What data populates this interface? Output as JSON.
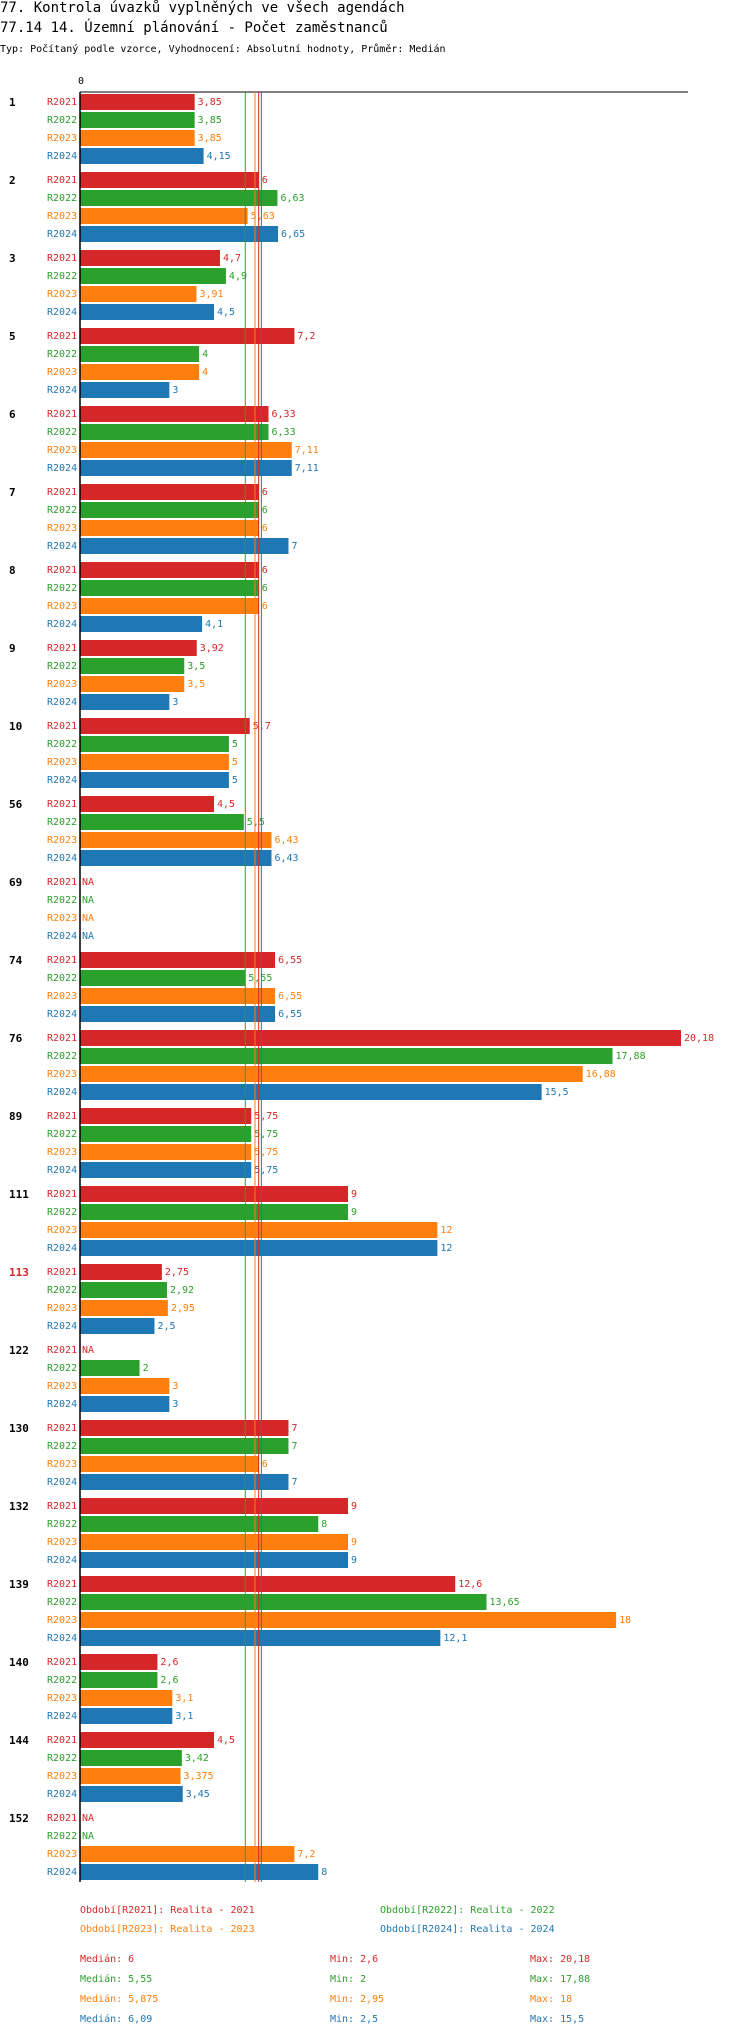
{
  "header": {
    "line1": "77. Kontrola úvazků vyplněných ve všech agendách",
    "line2": "77.14 14. Územní plánování - Počet zaměstnanců",
    "line3": "Typ: Počítaný podle vzorce, Vyhodnocení: Absolutní hodnoty, Průměr: Medián"
  },
  "colors": {
    "R2021": "#d62728",
    "R2022": "#2ca02c",
    "R2023": "#ff7f0e",
    "R2024": "#1f77b4",
    "highlight": "#d62728"
  },
  "chart_data": {
    "type": "bar",
    "orientation": "horizontal",
    "title": "77.14 14. Územní plánování - Počet zaměstnanců",
    "axis_zero_label": "0",
    "xlim": [
      0,
      20.18
    ],
    "series": [
      {
        "key": "R2021",
        "name": "R2021",
        "legend": "Období[R2021]: Realita - 2021"
      },
      {
        "key": "R2022",
        "name": "R2022",
        "legend": "Období[R2022]: Realita - 2022"
      },
      {
        "key": "R2023",
        "name": "R2023",
        "legend": "Období[R2023]: Realita - 2023"
      },
      {
        "key": "R2024",
        "name": "R2024",
        "legend": "Období[R2024]: Realita - 2024"
      }
    ],
    "groups": [
      {
        "id": "1",
        "highlight": false,
        "values": [
          3.85,
          3.85,
          3.85,
          4.15
        ],
        "labels": [
          "3,85",
          "3,85",
          "3,85",
          "4,15"
        ]
      },
      {
        "id": "2",
        "highlight": false,
        "values": [
          6,
          6.63,
          5.63,
          6.65
        ],
        "labels": [
          "6",
          "6,63",
          "5,63",
          "6,65"
        ]
      },
      {
        "id": "3",
        "highlight": false,
        "values": [
          4.7,
          4.9,
          3.91,
          4.5
        ],
        "labels": [
          "4,7",
          "4,9",
          "3,91",
          "4,5"
        ]
      },
      {
        "id": "5",
        "highlight": false,
        "values": [
          7.2,
          4,
          4,
          3
        ],
        "labels": [
          "7,2",
          "4",
          "4",
          "3"
        ]
      },
      {
        "id": "6",
        "highlight": false,
        "values": [
          6.33,
          6.33,
          7.11,
          7.11
        ],
        "labels": [
          "6,33",
          "6,33",
          "7,11",
          "7,11"
        ]
      },
      {
        "id": "7",
        "highlight": false,
        "values": [
          6,
          6,
          6,
          7
        ],
        "labels": [
          "6",
          "6",
          "6",
          "7"
        ]
      },
      {
        "id": "8",
        "highlight": false,
        "values": [
          6,
          6,
          6,
          4.1
        ],
        "labels": [
          "6",
          "6",
          "6",
          "4,1"
        ]
      },
      {
        "id": "9",
        "highlight": false,
        "values": [
          3.92,
          3.5,
          3.5,
          3
        ],
        "labels": [
          "3,92",
          "3,5",
          "3,5",
          "3"
        ]
      },
      {
        "id": "10",
        "highlight": false,
        "values": [
          5.7,
          5,
          5,
          5
        ],
        "labels": [
          "5,7",
          "5",
          "5",
          "5"
        ]
      },
      {
        "id": "56",
        "highlight": false,
        "values": [
          4.5,
          5.5,
          6.43,
          6.43
        ],
        "labels": [
          "4,5",
          "5,5",
          "6,43",
          "6,43"
        ]
      },
      {
        "id": "69",
        "highlight": false,
        "values": [
          null,
          null,
          null,
          null
        ],
        "labels": [
          "NA",
          "NA",
          "NA",
          "NA"
        ]
      },
      {
        "id": "74",
        "highlight": false,
        "values": [
          6.55,
          5.55,
          6.55,
          6.55
        ],
        "labels": [
          "6,55",
          "5,55",
          "6,55",
          "6,55"
        ]
      },
      {
        "id": "76",
        "highlight": false,
        "values": [
          20.18,
          17.88,
          16.88,
          15.5
        ],
        "labels": [
          "20,18",
          "17,88",
          "16,88",
          "15,5"
        ]
      },
      {
        "id": "89",
        "highlight": false,
        "values": [
          5.75,
          5.75,
          5.75,
          5.75
        ],
        "labels": [
          "5,75",
          "5,75",
          "5,75",
          "5,75"
        ]
      },
      {
        "id": "111",
        "highlight": false,
        "values": [
          9,
          9,
          12,
          12
        ],
        "labels": [
          "9",
          "9",
          "12",
          "12"
        ]
      },
      {
        "id": "113",
        "highlight": true,
        "values": [
          2.75,
          2.92,
          2.95,
          2.5
        ],
        "labels": [
          "2,75",
          "2,92",
          "2,95",
          "2,5"
        ]
      },
      {
        "id": "122",
        "highlight": false,
        "values": [
          null,
          2,
          3,
          3
        ],
        "labels": [
          "NA",
          "2",
          "3",
          "3"
        ]
      },
      {
        "id": "130",
        "highlight": false,
        "values": [
          7,
          7,
          6,
          7
        ],
        "labels": [
          "7",
          "7",
          "6",
          "7"
        ]
      },
      {
        "id": "132",
        "highlight": false,
        "values": [
          9,
          8,
          9,
          9
        ],
        "labels": [
          "9",
          "8",
          "9",
          "9"
        ]
      },
      {
        "id": "139",
        "highlight": false,
        "values": [
          12.6,
          13.65,
          18,
          12.1
        ],
        "labels": [
          "12,6",
          "13,65",
          "18",
          "12,1"
        ]
      },
      {
        "id": "140",
        "highlight": false,
        "values": [
          2.6,
          2.6,
          3.1,
          3.1
        ],
        "labels": [
          "2,6",
          "2,6",
          "3,1",
          "3,1"
        ]
      },
      {
        "id": "144",
        "highlight": false,
        "values": [
          4.5,
          3.42,
          3.375,
          3.45
        ],
        "labels": [
          "4,5",
          "3,42",
          "3,375",
          "3,45"
        ]
      },
      {
        "id": "152",
        "highlight": false,
        "values": [
          null,
          null,
          7.2,
          8
        ],
        "labels": [
          "NA",
          "NA",
          "7,2",
          "8"
        ]
      }
    ],
    "medians": [
      6,
      5.55,
      5.875,
      6.09
    ],
    "stats": [
      {
        "median": "Medián: 6",
        "min": "Min: 2,6",
        "max": "Max: 20,18"
      },
      {
        "median": "Medián: 5,55",
        "min": "Min: 2",
        "max": "Max: 17,88"
      },
      {
        "median": "Medián: 5,875",
        "min": "Min: 2,95",
        "max": "Max: 18"
      },
      {
        "median": "Medián: 6,09",
        "min": "Min: 2,5",
        "max": "Max: 15,5"
      }
    ]
  }
}
